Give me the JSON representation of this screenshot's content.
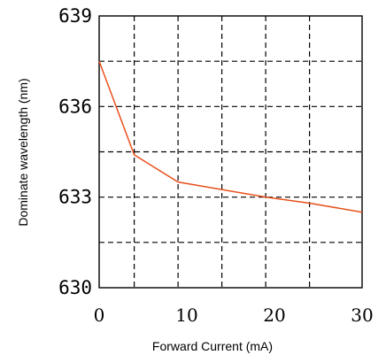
{
  "chart_data": {
    "type": "line",
    "xlabel": "Forward Current (mA)",
    "ylabel": "Dominate wavelength (nm)",
    "xlim": [
      0,
      30
    ],
    "ylim": [
      630,
      639
    ],
    "x_ticks": [
      0,
      10,
      20,
      30
    ],
    "y_ticks": [
      630,
      633,
      636,
      639
    ],
    "x_gridlines": [
      4,
      9,
      14,
      19,
      24
    ],
    "y_gridlines": [
      631.5,
      633,
      634.5,
      636,
      637.5
    ],
    "grid": true,
    "series": [
      {
        "color": "#e8501c",
        "x": [
          0,
          4,
          9,
          14,
          19,
          24,
          30
        ],
        "y": [
          637.5,
          634.4,
          633.5,
          633.25,
          633.0,
          632.8,
          632.5
        ]
      }
    ]
  }
}
